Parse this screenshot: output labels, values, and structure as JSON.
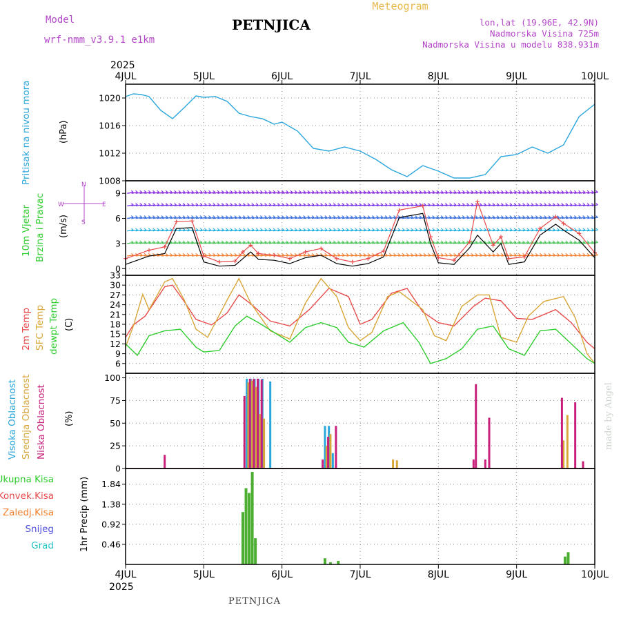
{
  "header": {
    "model_label": "Model",
    "model_name": "wrf-nmm_v3.9.1 e1km",
    "meteogram": "Meteogram",
    "station": "PETNJICA",
    "lonlat": "lon,lat (19.96E, 42.9N)",
    "elevation": "Nadmorska Visina 725m",
    "model_elevation": "Nadmorska Visina u modelu 838.931m",
    "year_top": "2025",
    "year_bottom": "2025",
    "footer_station": "PETNJICA",
    "credit": "made by Angel"
  },
  "colors": {
    "pressure": "#2ba6dc",
    "temp2m": "#e84a4a",
    "sfc": "#d9a638",
    "dewpt": "#2ecc2e",
    "high_cloud": "#2ba6dc",
    "mid_cloud": "#d9a638",
    "low_cloud": "#c8207a",
    "precip_total": "#4caf32",
    "precip_conv": "#e84a4a",
    "gust": "#e84a4a",
    "barb_stroke": "#000000"
  },
  "side_labels": {
    "pressure": "Pritisak na nivou mora",
    "pressure_unit": "(hPa)",
    "wind1": "10m Vjetar",
    "wind2": "Brzina i Pravac",
    "wind_unit": "(m/s)",
    "compass": "N S E W",
    "temp1": "2m Temp",
    "temp2": "SFC Temp",
    "temp3": "dewpt Temp",
    "temp_unit": "(C)",
    "cloud1": "Visoka Oblacnost",
    "cloud2": "Srednja Oblacnost",
    "cloud3": "Niska Oblacnost",
    "cloud_unit": "(%)",
    "precip_unit": "1hr Precip (mm)"
  },
  "precip_legend": [
    "Ukupna Kisa",
    "Konvek.Kisa",
    "Zaledj.Kisa",
    "Snijeg",
    "Grad"
  ],
  "precip_legend_colors": [
    "#2ecc2e",
    "#e84a4a",
    "#f08030",
    "#5050e0",
    "#22c4c4"
  ],
  "chart_data": [
    {
      "type": "line",
      "panel": "pressure",
      "x_days": [
        "4JUL",
        "5JUL",
        "6JUL",
        "7JUL",
        "8JUL",
        "9JUL",
        "10JUL"
      ],
      "ylim": [
        1008,
        1022
      ],
      "yticks": [
        1008,
        1012,
        1016,
        1020
      ],
      "series": [
        {
          "key": "pressure",
          "x": [
            0,
            0.1,
            0.2,
            0.3,
            0.45,
            0.6,
            0.75,
            0.9,
            1.0,
            1.15,
            1.3,
            1.45,
            1.6,
            1.75,
            1.9,
            2.0,
            2.2,
            2.4,
            2.6,
            2.8,
            3.0,
            3.2,
            3.4,
            3.6,
            3.8,
            4.0,
            4.2,
            4.4,
            4.6,
            4.8,
            5.0,
            5.2,
            5.4,
            5.6,
            5.8,
            6.0
          ],
          "values": [
            1020.2,
            1020.6,
            1020.5,
            1020.2,
            1018.2,
            1017.0,
            1018.6,
            1020.3,
            1020.1,
            1020.2,
            1019.5,
            1017.8,
            1017.3,
            1017.0,
            1016.2,
            1016.5,
            1015.2,
            1012.7,
            1012.3,
            1012.9,
            1012.3,
            1011.1,
            1009.6,
            1008.6,
            1010.2,
            1009.4,
            1008.4,
            1008.4,
            1008.9,
            1011.5,
            1011.8,
            1012.9,
            1012.0,
            1013.2,
            1017.3,
            1019.1
          ]
        }
      ]
    },
    {
      "type": "line",
      "panel": "wind",
      "ylim": [
        -0.8,
        10.5
      ],
      "yticks": [
        0,
        3,
        6,
        9
      ],
      "series": [
        {
          "key": "wind_speed",
          "x": [
            0,
            0.3,
            0.5,
            0.65,
            0.85,
            1.0,
            1.2,
            1.4,
            1.5,
            1.6,
            1.7,
            1.9,
            2.1,
            2.3,
            2.5,
            2.7,
            2.9,
            3.1,
            3.3,
            3.5,
            3.8,
            3.9,
            4.0,
            4.2,
            4.4,
            4.5,
            4.7,
            4.8,
            4.9,
            5.1,
            5.3,
            5.5,
            5.6,
            5.8,
            6.0
          ],
          "values": [
            0.5,
            1.5,
            1.8,
            4.8,
            4.9,
            0.8,
            0.3,
            0.4,
            1.2,
            2.0,
            1.1,
            1.0,
            0.6,
            1.3,
            1.6,
            0.6,
            0.3,
            0.6,
            1.4,
            6.1,
            6.6,
            3.0,
            0.7,
            0.5,
            2.5,
            4.0,
            2.0,
            3.0,
            0.5,
            0.8,
            4.0,
            5.3,
            4.6,
            3.4,
            1.3
          ]
        },
        {
          "key": "wind_gust",
          "x": [
            0,
            0.3,
            0.5,
            0.65,
            0.85,
            1.0,
            1.2,
            1.4,
            1.5,
            1.6,
            1.7,
            1.9,
            2.1,
            2.3,
            2.5,
            2.7,
            2.9,
            3.1,
            3.3,
            3.5,
            3.8,
            3.9,
            4.0,
            4.2,
            4.4,
            4.5,
            4.7,
            4.8,
            4.9,
            5.1,
            5.3,
            5.5,
            5.6,
            5.8,
            6.0
          ],
          "values": [
            1.2,
            2.2,
            2.6,
            5.6,
            5.7,
            1.5,
            0.8,
            0.9,
            2.0,
            2.8,
            1.8,
            1.6,
            1.2,
            2.0,
            2.4,
            1.2,
            0.8,
            1.2,
            2.1,
            7.0,
            7.5,
            3.8,
            1.3,
            1.0,
            3.2,
            8.0,
            2.8,
            3.8,
            1.2,
            1.4,
            4.8,
            6.2,
            5.4,
            4.2,
            1.9
          ]
        }
      ]
    },
    {
      "type": "line",
      "panel": "temperature",
      "ylim": [
        3,
        33
      ],
      "yticks": [
        6,
        9,
        12,
        15,
        18,
        21,
        24,
        27,
        30,
        33
      ],
      "series": [
        {
          "key": "temp2m",
          "x": [
            0,
            0.1,
            0.25,
            0.5,
            0.6,
            0.75,
            0.9,
            1.1,
            1.3,
            1.45,
            1.6,
            1.85,
            2.1,
            2.35,
            2.6,
            2.85,
            3.0,
            3.15,
            3.4,
            3.6,
            3.8,
            4.0,
            4.2,
            4.45,
            4.6,
            4.8,
            5.0,
            5.2,
            5.5,
            5.7,
            5.9,
            6.0
          ],
          "values": [
            14,
            17.8,
            20.5,
            29.5,
            30.0,
            25.0,
            19.5,
            17.8,
            21.5,
            27.0,
            24.3,
            19.0,
            17.5,
            22.5,
            29.0,
            26.5,
            18.0,
            19.5,
            27.5,
            29.0,
            21.8,
            18.5,
            17.5,
            23.5,
            26.0,
            25.2,
            19.8,
            19.5,
            22.5,
            18.5,
            12.5,
            10.5
          ]
        },
        {
          "key": "sfc_temp",
          "x": [
            0,
            0.1,
            0.22,
            0.3,
            0.5,
            0.6,
            0.75,
            0.9,
            1.05,
            1.3,
            1.45,
            1.6,
            1.85,
            2.1,
            2.3,
            2.5,
            2.7,
            2.85,
            3.0,
            3.15,
            3.35,
            3.5,
            3.8,
            3.95,
            4.1,
            4.3,
            4.5,
            4.65,
            4.8,
            5.0,
            5.15,
            5.35,
            5.6,
            5.75,
            5.9,
            6.0
          ],
          "values": [
            11,
            17.5,
            27.2,
            22.5,
            31.0,
            32.0,
            25.5,
            16.5,
            14.0,
            25.5,
            32.0,
            24.5,
            16.0,
            13.5,
            24.5,
            32.0,
            26.5,
            17.0,
            13.0,
            15.5,
            26.5,
            28.0,
            22.5,
            14.5,
            13.0,
            23.5,
            27.0,
            27.0,
            14.0,
            12.5,
            20.5,
            25.0,
            26.5,
            20.0,
            9.0,
            6.0
          ]
        },
        {
          "key": "dewpt",
          "x": [
            0,
            0.15,
            0.3,
            0.5,
            0.7,
            0.9,
            1.0,
            1.2,
            1.4,
            1.55,
            1.7,
            1.9,
            2.1,
            2.3,
            2.5,
            2.7,
            2.85,
            3.05,
            3.3,
            3.55,
            3.75,
            3.9,
            4.1,
            4.3,
            4.5,
            4.7,
            4.9,
            5.1,
            5.3,
            5.5,
            5.7,
            5.9,
            6.0
          ],
          "values": [
            12,
            8.5,
            14.5,
            16.0,
            16.5,
            11.0,
            9.5,
            10.0,
            17.5,
            20.5,
            18.5,
            15.5,
            12.5,
            17.0,
            18.5,
            17.0,
            12.5,
            11.0,
            16.0,
            18.5,
            12.5,
            6.0,
            7.5,
            10.5,
            16.5,
            17.5,
            10.5,
            8.5,
            16.0,
            16.5,
            12.0,
            7.5,
            6.0
          ]
        }
      ]
    },
    {
      "type": "bar",
      "panel": "cloud",
      "ylim": [
        0,
        105
      ],
      "yticks": [
        0,
        25,
        50,
        75,
        100
      ],
      "series": [
        {
          "key": "high_cloud",
          "x": [
            1.55,
            1.6,
            1.65,
            1.7,
            1.75,
            1.85,
            2.55,
            2.6,
            2.65
          ],
          "values": [
            99,
            99,
            99,
            99,
            99,
            96,
            47,
            47,
            17
          ]
        },
        {
          "key": "mid_cloud",
          "x": [
            1.57,
            1.62,
            1.67,
            1.72,
            1.77,
            2.57,
            2.62,
            3.42,
            3.47,
            5.6,
            5.65
          ],
          "values": [
            95,
            97,
            90,
            60,
            55,
            25,
            38,
            10,
            9,
            31,
            59
          ]
        },
        {
          "key": "low_cloud",
          "x": [
            0.5,
            1.52,
            1.59,
            1.64,
            1.69,
            1.74,
            2.52,
            2.59,
            2.69,
            4.45,
            4.48,
            4.6,
            4.65,
            5.58,
            5.75,
            5.85
          ],
          "values": [
            15,
            80,
            99,
            99,
            99,
            98,
            10,
            35,
            47,
            10,
            93,
            10,
            56,
            78,
            73,
            8
          ]
        }
      ]
    },
    {
      "type": "bar",
      "panel": "precip",
      "ylim": [
        0,
        2.2
      ],
      "yticks": [
        0.46,
        0.92,
        1.38,
        1.84
      ],
      "series": [
        {
          "key": "total_precip",
          "x": [
            1.5,
            1.54,
            1.58,
            1.62,
            1.66,
            2.55,
            2.62,
            2.72,
            5.62,
            5.66
          ],
          "values": [
            1.2,
            1.75,
            1.64,
            2.12,
            0.6,
            0.14,
            0.05,
            0.08,
            0.18,
            0.28
          ]
        }
      ]
    }
  ]
}
